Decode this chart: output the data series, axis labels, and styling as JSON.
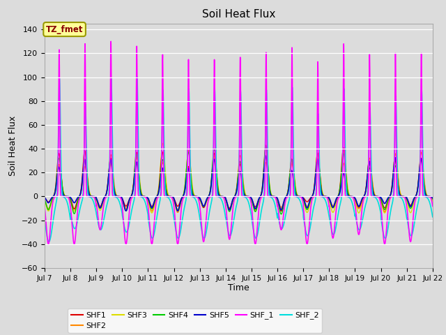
{
  "title": "Soil Heat Flux",
  "xlabel": "Time",
  "ylabel": "Soil Heat Flux",
  "ylim": [
    -60,
    145
  ],
  "yticks": [
    -60,
    -40,
    -20,
    0,
    20,
    40,
    60,
    80,
    100,
    120,
    140
  ],
  "background_color": "#dcdcdc",
  "plot_bg_color": "#dcdcdc",
  "annotation_text": "TZ_fmet",
  "annotation_bg": "#ffff99",
  "annotation_border": "#999900",
  "annotation_text_color": "#880000",
  "series": {
    "SHF1": {
      "color": "#dd0000",
      "lw": 1.0
    },
    "SHF2": {
      "color": "#ff8800",
      "lw": 1.0
    },
    "SHF3": {
      "color": "#dddd00",
      "lw": 1.0
    },
    "SHF4": {
      "color": "#00cc00",
      "lw": 1.0
    },
    "SHF5": {
      "color": "#0000cc",
      "lw": 1.2
    },
    "SHF_1": {
      "color": "#ff00ff",
      "lw": 1.2
    },
    "SHF_2": {
      "color": "#00dddd",
      "lw": 1.2
    }
  },
  "xstart": 7,
  "xend": 22,
  "xtick_labels": [
    "Jul 7",
    "Jul 8",
    "Jul 9",
    "Jul 10",
    "Jul 11",
    "Jul 12",
    "Jul 13",
    "Jul 14",
    "Jul 15",
    "Jul 16",
    "Jul 17",
    "Jul 18",
    "Jul 19",
    "Jul 20",
    "Jul 21",
    "Jul 22"
  ],
  "xtick_positions": [
    7,
    8,
    9,
    10,
    11,
    12,
    13,
    14,
    15,
    16,
    17,
    18,
    19,
    20,
    21,
    22
  ],
  "figwidth": 6.4,
  "figheight": 4.8,
  "dpi": 100
}
